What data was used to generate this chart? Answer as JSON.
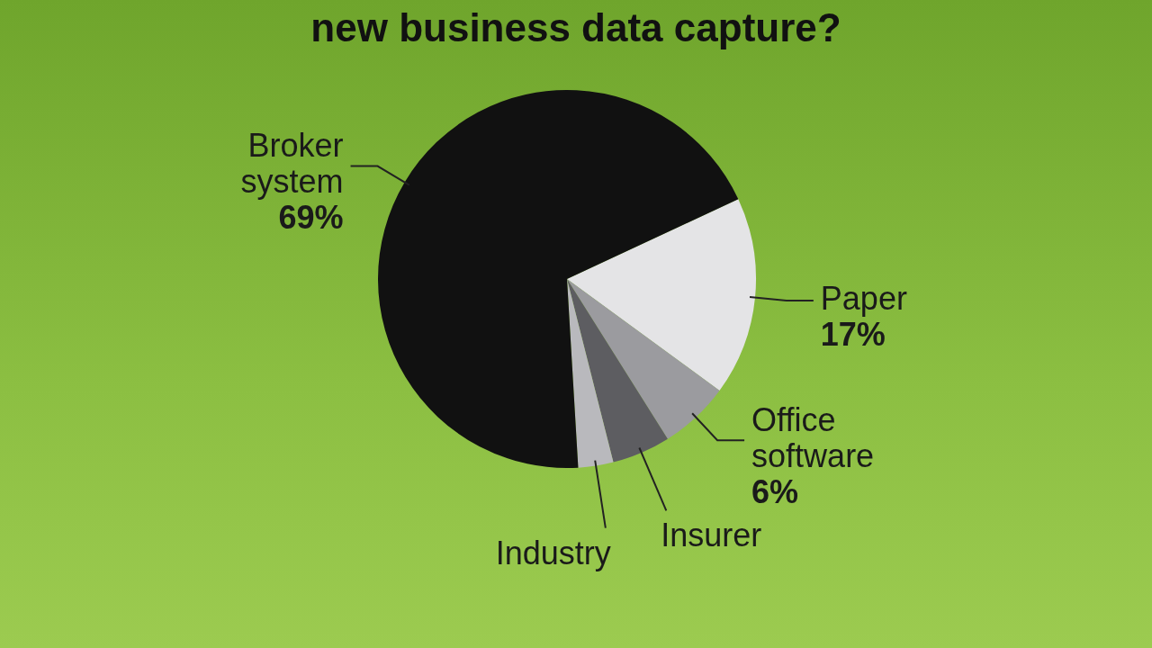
{
  "chart_data": {
    "type": "pie",
    "title": "new business data capture?",
    "categories": [
      "Paper",
      "Office software",
      "Insurer",
      "Industry",
      "Broker system"
    ],
    "values": [
      17,
      6,
      5,
      3,
      69
    ],
    "colors": [
      "#e4e4e6",
      "#9b9b9f",
      "#5d5d61",
      "#b9b9bd",
      "#111111"
    ],
    "value_labels": [
      "17%",
      "6%",
      null,
      null,
      "69%"
    ],
    "legend": false
  }
}
